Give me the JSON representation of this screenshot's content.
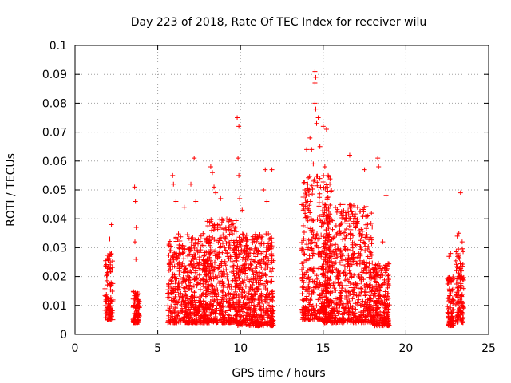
{
  "chart_data": {
    "type": "scatter",
    "title": "Day 223 of 2018, Rate Of TEC Index for receiver wilu",
    "xlabel": "GPS time / hours",
    "ylabel": "ROTI / TECUs",
    "xlim": [
      0,
      25
    ],
    "ylim": [
      0,
      0.1
    ],
    "x_ticks": [
      "0",
      "5",
      "10",
      "15",
      "20",
      "25"
    ],
    "y_ticks": [
      "0",
      "0.01",
      "0.02",
      "0.03",
      "0.04",
      "0.05",
      "0.06",
      "0.07",
      "0.08",
      "0.09",
      "0.1"
    ],
    "grid": true,
    "marker": "plus",
    "color": "#ff0000",
    "clusters": [
      {
        "x": [
          1.8,
          2.3
        ],
        "y_range": [
          0.005,
          0.028
        ]
      },
      {
        "x": [
          3.5,
          3.9
        ],
        "y_range": [
          0.004,
          0.015
        ]
      },
      {
        "x": [
          5.6,
          8.0
        ],
        "y_range": [
          0.004,
          0.035
        ]
      },
      {
        "x": [
          7.9,
          9.8
        ],
        "y_range": [
          0.004,
          0.04
        ]
      },
      {
        "x": [
          9.7,
          12.0
        ],
        "y_range": [
          0.003,
          0.035
        ]
      },
      {
        "x": [
          13.7,
          15.5
        ],
        "y_range": [
          0.005,
          0.055
        ]
      },
      {
        "x": [
          15.0,
          18.0
        ],
        "y_range": [
          0.004,
          0.045
        ]
      },
      {
        "x": [
          18.0,
          19.0
        ],
        "y_range": [
          0.003,
          0.025
        ]
      },
      {
        "x": [
          22.5,
          22.9
        ],
        "y_range": [
          0.003,
          0.02
        ]
      },
      {
        "x": [
          23.0,
          23.5
        ],
        "y_range": [
          0.004,
          0.03
        ]
      }
    ],
    "outliers": [
      [
        2.2,
        0.038
      ],
      [
        2.1,
        0.033
      ],
      [
        3.6,
        0.051
      ],
      [
        3.65,
        0.046
      ],
      [
        3.7,
        0.037
      ],
      [
        3.62,
        0.032
      ],
      [
        3.68,
        0.026
      ],
      [
        5.9,
        0.055
      ],
      [
        5.95,
        0.052
      ],
      [
        6.1,
        0.046
      ],
      [
        6.6,
        0.044
      ],
      [
        7.0,
        0.052
      ],
      [
        7.2,
        0.061
      ],
      [
        7.3,
        0.046
      ],
      [
        8.2,
        0.058
      ],
      [
        8.3,
        0.056
      ],
      [
        8.4,
        0.051
      ],
      [
        8.5,
        0.049
      ],
      [
        8.8,
        0.047
      ],
      [
        9.8,
        0.075
      ],
      [
        9.9,
        0.072
      ],
      [
        9.85,
        0.061
      ],
      [
        9.9,
        0.055
      ],
      [
        9.95,
        0.047
      ],
      [
        10.1,
        0.043
      ],
      [
        11.5,
        0.057
      ],
      [
        11.9,
        0.057
      ],
      [
        11.4,
        0.05
      ],
      [
        11.6,
        0.046
      ],
      [
        13.9,
        0.05
      ],
      [
        14.0,
        0.064
      ],
      [
        14.2,
        0.068
      ],
      [
        14.3,
        0.064
      ],
      [
        14.4,
        0.059
      ],
      [
        14.5,
        0.08
      ],
      [
        14.55,
        0.078
      ],
      [
        14.5,
        0.091
      ],
      [
        14.55,
        0.089
      ],
      [
        14.5,
        0.087
      ],
      [
        14.6,
        0.073
      ],
      [
        14.7,
        0.075
      ],
      [
        14.8,
        0.065
      ],
      [
        15.0,
        0.072
      ],
      [
        15.2,
        0.071
      ],
      [
        15.1,
        0.058
      ],
      [
        15.3,
        0.055
      ],
      [
        15.4,
        0.052
      ],
      [
        16.6,
        0.062
      ],
      [
        17.5,
        0.057
      ],
      [
        18.3,
        0.061
      ],
      [
        18.35,
        0.058
      ],
      [
        18.8,
        0.048
      ],
      [
        18.6,
        0.032
      ],
      [
        23.3,
        0.049
      ],
      [
        23.2,
        0.035
      ],
      [
        23.4,
        0.032
      ],
      [
        23.1,
        0.034
      ],
      [
        22.6,
        0.027
      ],
      [
        22.7,
        0.028
      ]
    ]
  }
}
